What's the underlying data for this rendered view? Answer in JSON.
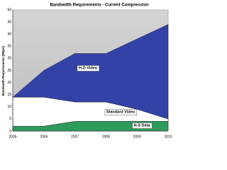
{
  "chart_data": {
    "type": "stacked_area",
    "title": "Bandwidth Requirements - Current Compression",
    "y_label": "Bandwidth Requirements (Mbps)",
    "categories": [
      "2005",
      "2006",
      "2007",
      "2008",
      "2009",
      "2010"
    ],
    "series": [
      {
        "name": "H-S Data",
        "color": "#2e9a5c",
        "values": [
          2,
          2,
          4,
          4,
          4,
          4
        ]
      },
      {
        "name": "Standard Video",
        "color": "#ffffff",
        "values": [
          12,
          12,
          8,
          8,
          5,
          1
        ]
      },
      {
        "name": "H-D Video",
        "color": "#3342a6",
        "values": [
          0,
          11,
          20,
          20,
          29,
          39
        ]
      }
    ],
    "ylim": [
      0,
      50
    ],
    "yticks": [
      0,
      5,
      10,
      15,
      20,
      25,
      30,
      35,
      40,
      45,
      50
    ]
  }
}
